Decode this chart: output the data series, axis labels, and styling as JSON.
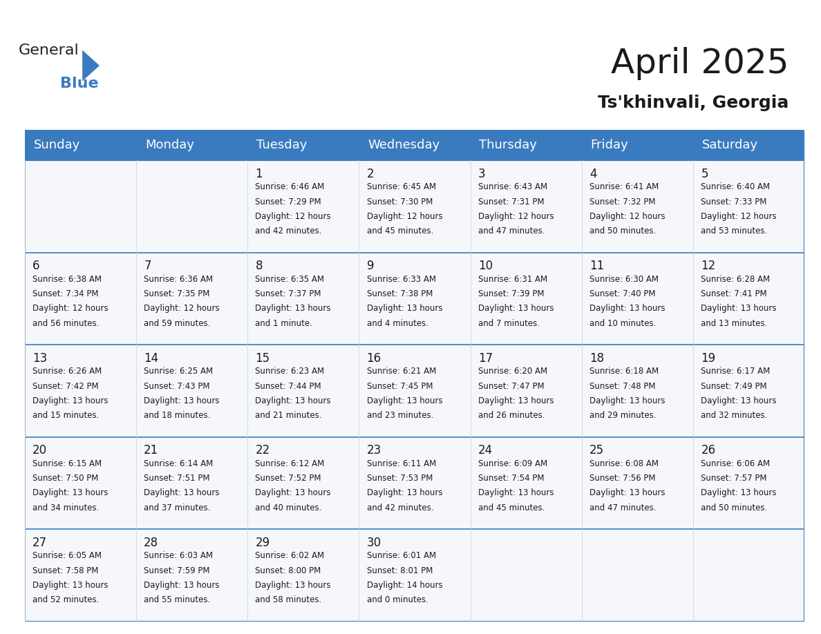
{
  "title": "April 2025",
  "subtitle": "Ts'khinvali, Georgia",
  "header_bg": "#3a7bbf",
  "header_text": "#ffffff",
  "cell_bg_light": "#f0f4f8",
  "cell_bg_white": "#ffffff",
  "border_color": "#3a7bbf",
  "day_names": [
    "Sunday",
    "Monday",
    "Tuesday",
    "Wednesday",
    "Thursday",
    "Friday",
    "Saturday"
  ],
  "days": [
    {
      "day": 0,
      "col": 0,
      "row": 0,
      "sunrise": "",
      "sunset": "",
      "daylight": ""
    },
    {
      "day": 0,
      "col": 1,
      "row": 0,
      "sunrise": "",
      "sunset": "",
      "daylight": ""
    },
    {
      "day": 1,
      "col": 2,
      "row": 0,
      "sunrise": "6:46 AM",
      "sunset": "7:29 PM",
      "daylight": "12 hours\nand 42 minutes."
    },
    {
      "day": 2,
      "col": 3,
      "row": 0,
      "sunrise": "6:45 AM",
      "sunset": "7:30 PM",
      "daylight": "12 hours\nand 45 minutes."
    },
    {
      "day": 3,
      "col": 4,
      "row": 0,
      "sunrise": "6:43 AM",
      "sunset": "7:31 PM",
      "daylight": "12 hours\nand 47 minutes."
    },
    {
      "day": 4,
      "col": 5,
      "row": 0,
      "sunrise": "6:41 AM",
      "sunset": "7:32 PM",
      "daylight": "12 hours\nand 50 minutes."
    },
    {
      "day": 5,
      "col": 6,
      "row": 0,
      "sunrise": "6:40 AM",
      "sunset": "7:33 PM",
      "daylight": "12 hours\nand 53 minutes."
    },
    {
      "day": 6,
      "col": 0,
      "row": 1,
      "sunrise": "6:38 AM",
      "sunset": "7:34 PM",
      "daylight": "12 hours\nand 56 minutes."
    },
    {
      "day": 7,
      "col": 1,
      "row": 1,
      "sunrise": "6:36 AM",
      "sunset": "7:35 PM",
      "daylight": "12 hours\nand 59 minutes."
    },
    {
      "day": 8,
      "col": 2,
      "row": 1,
      "sunrise": "6:35 AM",
      "sunset": "7:37 PM",
      "daylight": "13 hours\nand 1 minute."
    },
    {
      "day": 9,
      "col": 3,
      "row": 1,
      "sunrise": "6:33 AM",
      "sunset": "7:38 PM",
      "daylight": "13 hours\nand 4 minutes."
    },
    {
      "day": 10,
      "col": 4,
      "row": 1,
      "sunrise": "6:31 AM",
      "sunset": "7:39 PM",
      "daylight": "13 hours\nand 7 minutes."
    },
    {
      "day": 11,
      "col": 5,
      "row": 1,
      "sunrise": "6:30 AM",
      "sunset": "7:40 PM",
      "daylight": "13 hours\nand 10 minutes."
    },
    {
      "day": 12,
      "col": 6,
      "row": 1,
      "sunrise": "6:28 AM",
      "sunset": "7:41 PM",
      "daylight": "13 hours\nand 13 minutes."
    },
    {
      "day": 13,
      "col": 0,
      "row": 2,
      "sunrise": "6:26 AM",
      "sunset": "7:42 PM",
      "daylight": "13 hours\nand 15 minutes."
    },
    {
      "day": 14,
      "col": 1,
      "row": 2,
      "sunrise": "6:25 AM",
      "sunset": "7:43 PM",
      "daylight": "13 hours\nand 18 minutes."
    },
    {
      "day": 15,
      "col": 2,
      "row": 2,
      "sunrise": "6:23 AM",
      "sunset": "7:44 PM",
      "daylight": "13 hours\nand 21 minutes."
    },
    {
      "day": 16,
      "col": 3,
      "row": 2,
      "sunrise": "6:21 AM",
      "sunset": "7:45 PM",
      "daylight": "13 hours\nand 23 minutes."
    },
    {
      "day": 17,
      "col": 4,
      "row": 2,
      "sunrise": "6:20 AM",
      "sunset": "7:47 PM",
      "daylight": "13 hours\nand 26 minutes."
    },
    {
      "day": 18,
      "col": 5,
      "row": 2,
      "sunrise": "6:18 AM",
      "sunset": "7:48 PM",
      "daylight": "13 hours\nand 29 minutes."
    },
    {
      "day": 19,
      "col": 6,
      "row": 2,
      "sunrise": "6:17 AM",
      "sunset": "7:49 PM",
      "daylight": "13 hours\nand 32 minutes."
    },
    {
      "day": 20,
      "col": 0,
      "row": 3,
      "sunrise": "6:15 AM",
      "sunset": "7:50 PM",
      "daylight": "13 hours\nand 34 minutes."
    },
    {
      "day": 21,
      "col": 1,
      "row": 3,
      "sunrise": "6:14 AM",
      "sunset": "7:51 PM",
      "daylight": "13 hours\nand 37 minutes."
    },
    {
      "day": 22,
      "col": 2,
      "row": 3,
      "sunrise": "6:12 AM",
      "sunset": "7:52 PM",
      "daylight": "13 hours\nand 40 minutes."
    },
    {
      "day": 23,
      "col": 3,
      "row": 3,
      "sunrise": "6:11 AM",
      "sunset": "7:53 PM",
      "daylight": "13 hours\nand 42 minutes."
    },
    {
      "day": 24,
      "col": 4,
      "row": 3,
      "sunrise": "6:09 AM",
      "sunset": "7:54 PM",
      "daylight": "13 hours\nand 45 minutes."
    },
    {
      "day": 25,
      "col": 5,
      "row": 3,
      "sunrise": "6:08 AM",
      "sunset": "7:56 PM",
      "daylight": "13 hours\nand 47 minutes."
    },
    {
      "day": 26,
      "col": 6,
      "row": 3,
      "sunrise": "6:06 AM",
      "sunset": "7:57 PM",
      "daylight": "13 hours\nand 50 minutes."
    },
    {
      "day": 27,
      "col": 0,
      "row": 4,
      "sunrise": "6:05 AM",
      "sunset": "7:58 PM",
      "daylight": "13 hours\nand 52 minutes."
    },
    {
      "day": 28,
      "col": 1,
      "row": 4,
      "sunrise": "6:03 AM",
      "sunset": "7:59 PM",
      "daylight": "13 hours\nand 55 minutes."
    },
    {
      "day": 29,
      "col": 2,
      "row": 4,
      "sunrise": "6:02 AM",
      "sunset": "8:00 PM",
      "daylight": "13 hours\nand 58 minutes."
    },
    {
      "day": 30,
      "col": 3,
      "row": 4,
      "sunrise": "6:01 AM",
      "sunset": "8:01 PM",
      "daylight": "14 hours\nand 0 minutes."
    },
    {
      "day": 0,
      "col": 4,
      "row": 4,
      "sunrise": "",
      "sunset": "",
      "daylight": ""
    },
    {
      "day": 0,
      "col": 5,
      "row": 4,
      "sunrise": "",
      "sunset": "",
      "daylight": ""
    },
    {
      "day": 0,
      "col": 6,
      "row": 4,
      "sunrise": "",
      "sunset": "",
      "daylight": ""
    }
  ],
  "logo_text1": "General",
  "logo_text2": "Blue",
  "logo_color1": "#222222",
  "logo_color2": "#3a7bbf",
  "logo_arrow_color": "#3a7bbf"
}
